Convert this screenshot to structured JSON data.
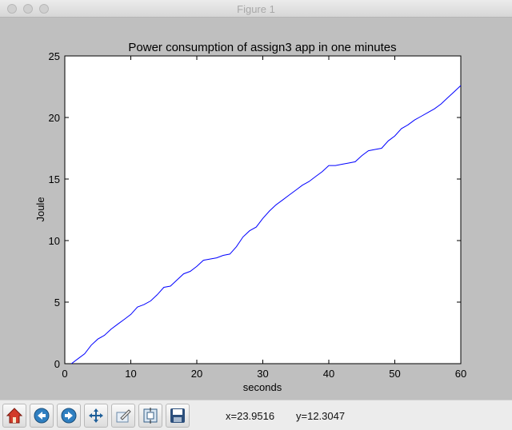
{
  "window": {
    "title": "Figure 1"
  },
  "toolbar": {
    "buttons": [
      {
        "name": "home-button",
        "icon": "home-icon"
      },
      {
        "name": "back-button",
        "icon": "arrow-left-icon"
      },
      {
        "name": "forward-button",
        "icon": "arrow-right-icon"
      },
      {
        "name": "pan-button",
        "icon": "move-icon"
      },
      {
        "name": "zoom-button",
        "icon": "zoom-rect-icon"
      },
      {
        "name": "subplots-button",
        "icon": "subplots-icon"
      },
      {
        "name": "save-button",
        "icon": "floppy-disk-icon"
      }
    ],
    "x_readout": "x=23.9516",
    "y_readout": "y=12.3047"
  },
  "chart_data": {
    "type": "line",
    "title": "Power consumption of assign3 app in one minutes",
    "xlabel": "seconds",
    "ylabel": "Joule",
    "xlim": [
      0,
      60
    ],
    "ylim": [
      0,
      25
    ],
    "xticks": [
      0,
      10,
      20,
      30,
      40,
      50,
      60
    ],
    "yticks": [
      0,
      5,
      10,
      15,
      20,
      25
    ],
    "grid": false,
    "line_color": "#0000ff",
    "series": [
      {
        "x": [
          1,
          2,
          3,
          4,
          5,
          6,
          7,
          8,
          9,
          10,
          11,
          12,
          13,
          14,
          15,
          16,
          17,
          18,
          19,
          20,
          21,
          22,
          23,
          24,
          25,
          26,
          27,
          28,
          29,
          30,
          31,
          32,
          33,
          34,
          35,
          36,
          37,
          38,
          39,
          40,
          41,
          42,
          43,
          44,
          45,
          46,
          47,
          48,
          49,
          50,
          51,
          52,
          53,
          54,
          55,
          56,
          57,
          58,
          59,
          60
        ],
        "y": [
          0.0,
          0.4,
          0.8,
          1.5,
          2.0,
          2.3,
          2.8,
          3.2,
          3.6,
          4.0,
          4.6,
          4.8,
          5.1,
          5.6,
          6.2,
          6.3,
          6.8,
          7.3,
          7.5,
          7.9,
          8.4,
          8.5,
          8.6,
          8.8,
          8.9,
          9.5,
          10.3,
          10.8,
          11.1,
          11.8,
          12.4,
          12.9,
          13.3,
          13.7,
          14.1,
          14.5,
          14.8,
          15.2,
          15.6,
          16.1,
          16.1,
          16.2,
          16.3,
          16.4,
          16.9,
          17.3,
          17.4,
          17.5,
          18.1,
          18.5,
          19.1,
          19.4,
          19.8,
          20.1,
          20.4,
          20.7,
          21.1,
          21.6,
          22.1,
          22.6
        ]
      }
    ]
  }
}
